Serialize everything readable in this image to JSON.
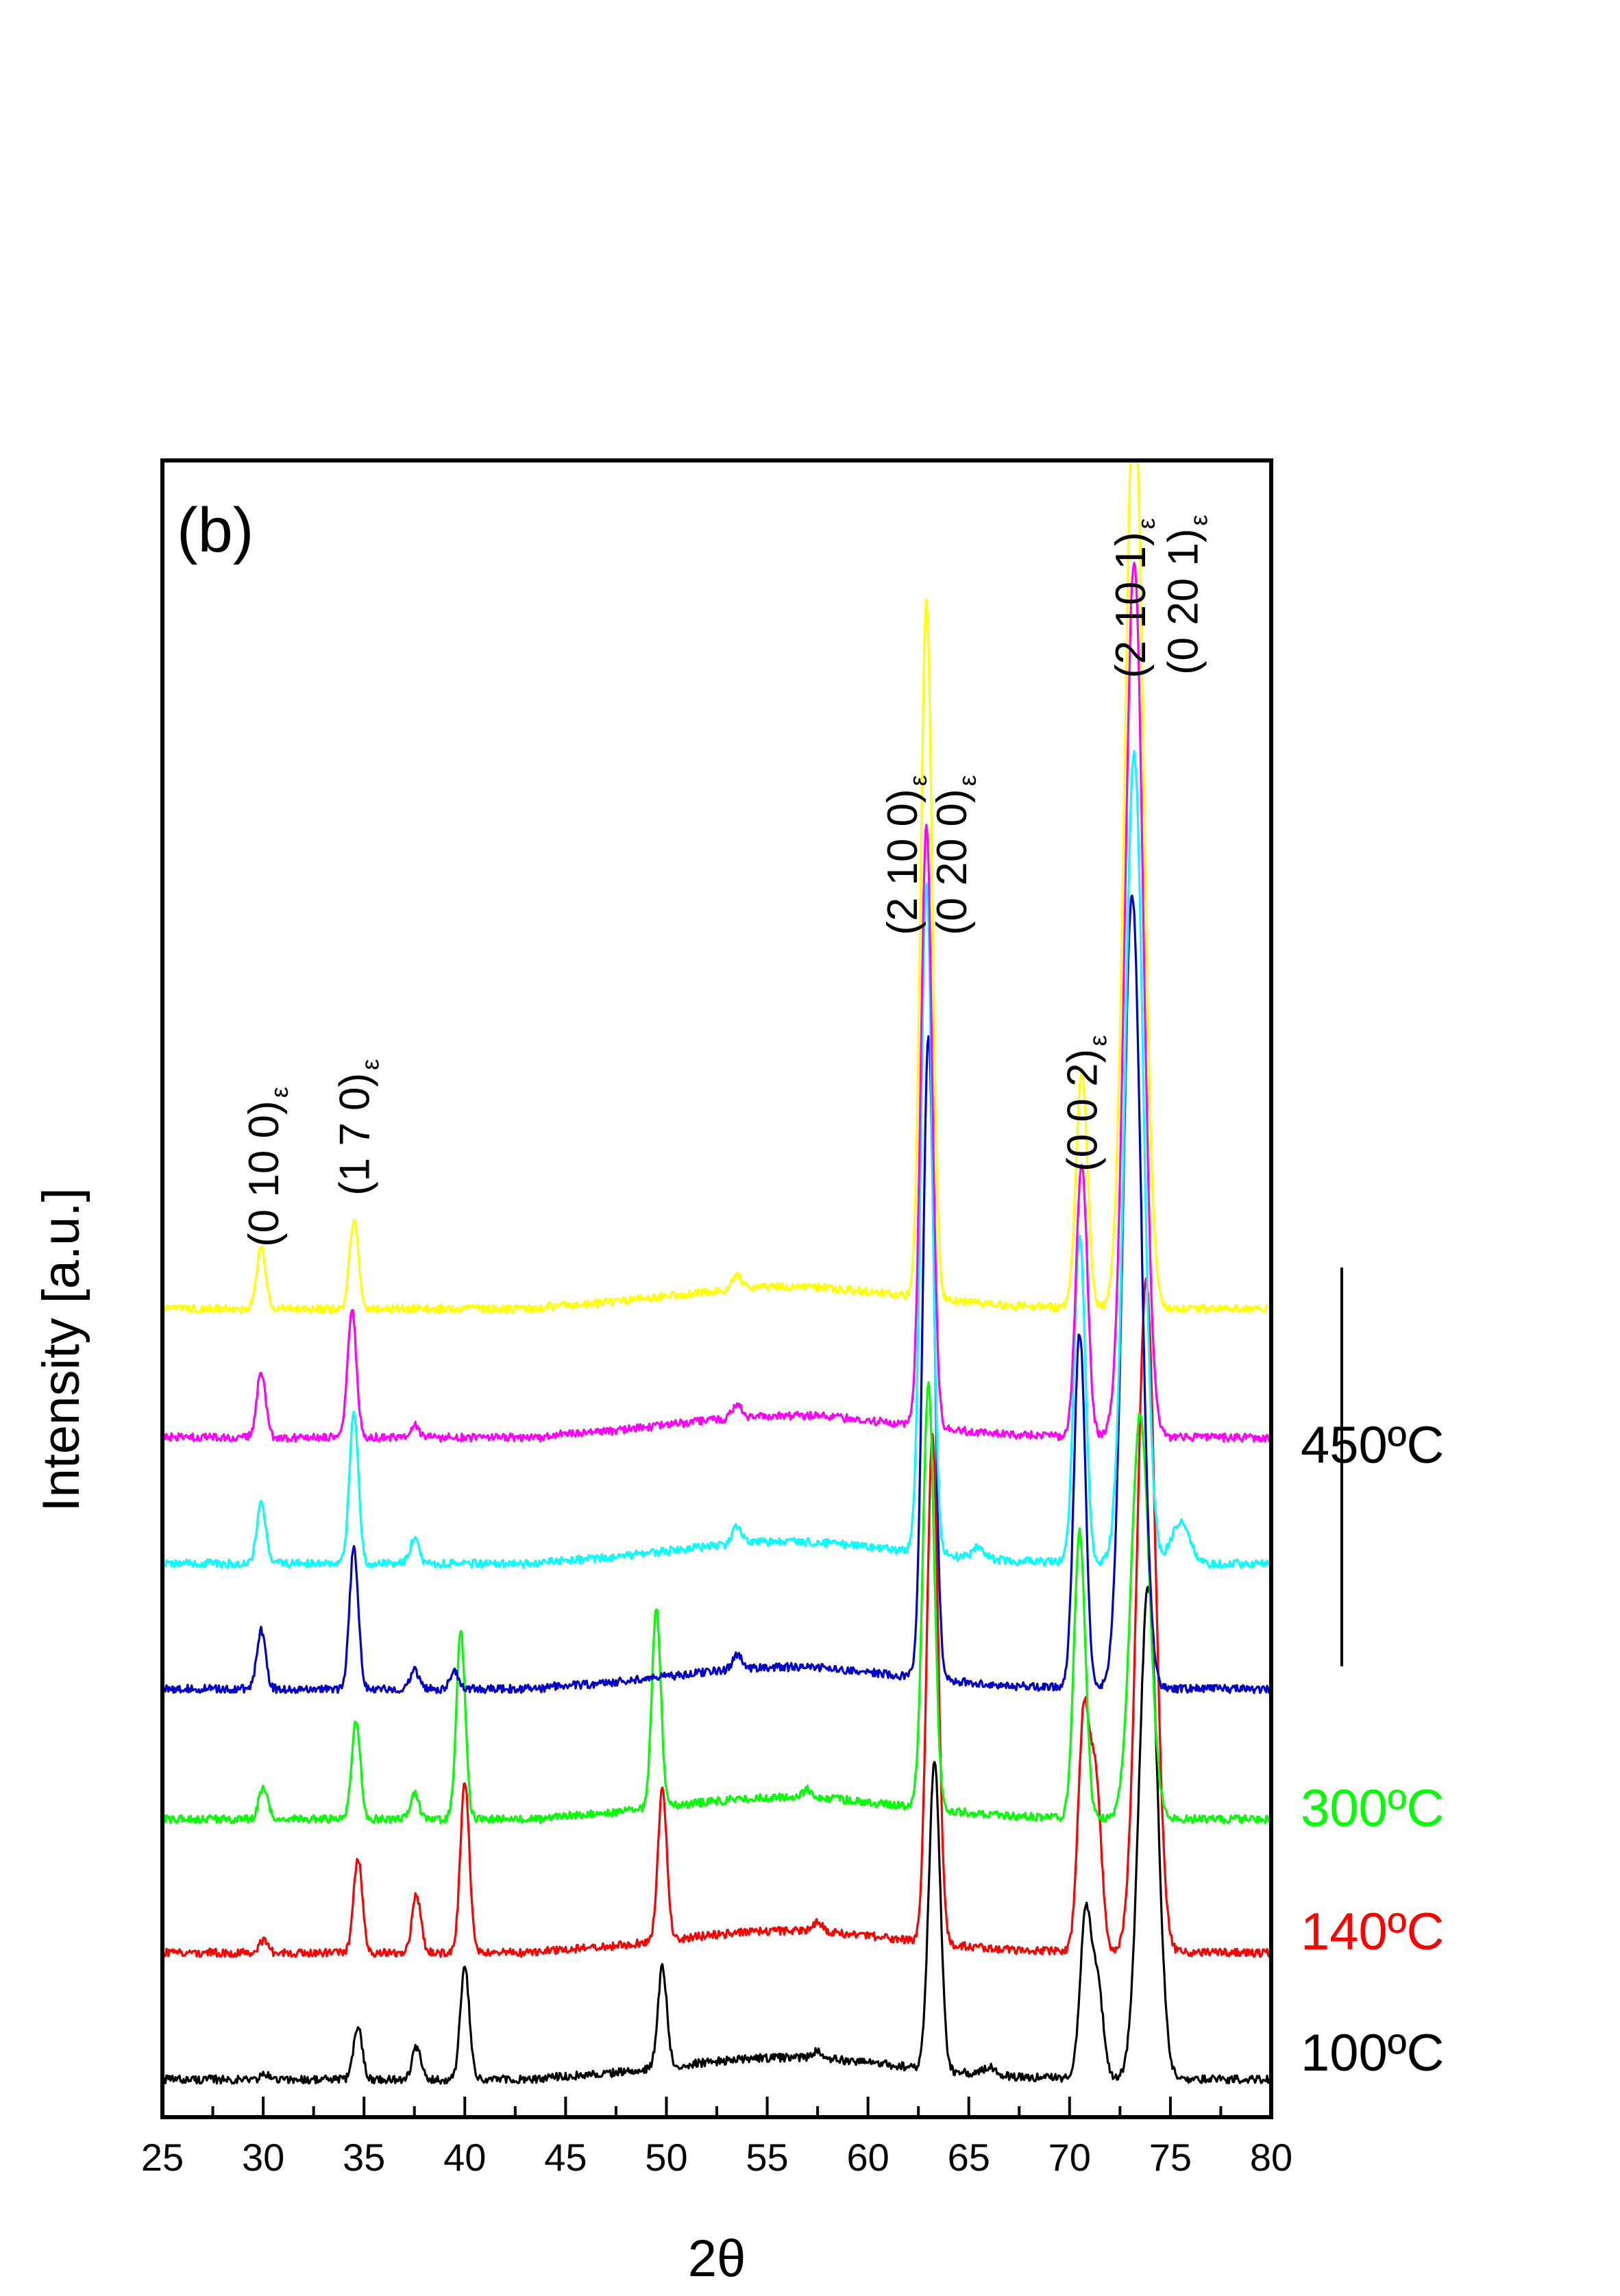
{
  "chart_data": {
    "type": "line",
    "panel_label": "(b)",
    "xlabel": "2θ",
    "ylabel": "Intensity [a.u.]",
    "xlim": [
      25,
      80
    ],
    "x_ticks": [
      25,
      30,
      35,
      40,
      45,
      50,
      55,
      60,
      65,
      70,
      75,
      80
    ],
    "grid": false,
    "series": [
      {
        "color": "#000000",
        "baseline": 300,
        "shift": 0.0,
        "peaks": [
          [
            30.1,
            35
          ],
          [
            34.7,
            380
          ],
          [
            37.6,
            230
          ],
          [
            40.0,
            820
          ],
          [
            49.8,
            730
          ],
          [
            57.5,
            60
          ],
          [
            63.3,
            2250
          ],
          [
            66.0,
            60
          ],
          [
            70.8,
            1200
          ],
          [
            71.4,
            650
          ],
          [
            73.9,
            3600
          ]
        ]
      },
      {
        "color": "#ff0000",
        "baseline": 480,
        "shift": 0.0,
        "peaks": [
          [
            30.0,
            90
          ],
          [
            34.7,
            700
          ],
          [
            37.6,
            420
          ],
          [
            40.0,
            1260
          ],
          [
            49.8,
            1100
          ],
          [
            57.5,
            70
          ],
          [
            63.2,
            3700
          ],
          [
            70.7,
            1700
          ],
          [
            71.3,
            1200
          ],
          [
            73.8,
            4900
          ]
        ]
      },
      {
        "color": "#00ff00",
        "baseline": 440,
        "shift": 0.0,
        "peaks": [
          [
            30.0,
            230
          ],
          [
            34.6,
            700
          ],
          [
            37.5,
            190
          ],
          [
            39.8,
            1370
          ],
          [
            49.5,
            1450
          ],
          [
            57.0,
            60
          ],
          [
            63.0,
            3100
          ],
          [
            70.5,
            2100
          ],
          [
            73.5,
            2950
          ]
        ]
      },
      {
        "color": "#0000cc",
        "baseline": 500,
        "shift": 0.0,
        "peaks": [
          [
            29.9,
            430
          ],
          [
            34.5,
            1030
          ],
          [
            37.5,
            140
          ],
          [
            39.5,
            120
          ],
          [
            53.5,
            110
          ],
          [
            63.0,
            4700
          ],
          [
            70.5,
            2600
          ],
          [
            73.1,
            5800
          ]
        ]
      },
      {
        "color": "#00ffff",
        "baseline": 500,
        "shift": 0.0,
        "peaks": [
          [
            29.9,
            450
          ],
          [
            34.5,
            1100
          ],
          [
            37.5,
            180
          ],
          [
            53.5,
            120
          ],
          [
            62.9,
            4900
          ],
          [
            65.5,
            80
          ],
          [
            70.5,
            2400
          ],
          [
            73.2,
            5900
          ],
          [
            75.5,
            300
          ]
        ]
      },
      {
        "color": "#ff00ff",
        "baseline": 480,
        "shift": 0.0,
        "peaks": [
          [
            29.9,
            480
          ],
          [
            34.4,
            930
          ],
          [
            37.5,
            100
          ],
          [
            53.5,
            100
          ],
          [
            62.9,
            4400
          ],
          [
            70.6,
            2000
          ],
          [
            73.2,
            6400
          ]
        ]
      },
      {
        "color": "#ffff00",
        "baseline": 480,
        "shift": 0.0,
        "peaks": [
          [
            29.9,
            460
          ],
          [
            34.5,
            650
          ],
          [
            53.5,
            100
          ],
          [
            62.9,
            5100
          ],
          [
            70.6,
            1720
          ],
          [
            73.2,
            6800
          ]
        ]
      }
    ],
    "temperature_labels": [
      {
        "text": "100ºC",
        "color": "#000000"
      },
      {
        "text": "140ºC",
        "color": "#ff0000"
      },
      {
        "text": "300ºC",
        "color": "#00ff00"
      },
      {
        "text": "450ºC",
        "color": "#000000"
      }
    ],
    "peak_labels": [
      {
        "lines": [
          "(0 10 0)"
        ],
        "sub": "ε",
        "x": 30.0
      },
      {
        "lines": [
          "(1 7 0)"
        ],
        "sub": "ε",
        "x": 34.5
      },
      {
        "lines": [
          "(2 10 0)",
          "(0 20 0)"
        ],
        "sub": "ε",
        "x": 62.9
      },
      {
        "lines": [
          "(0 0 2)"
        ],
        "sub": "ε",
        "x": 70.6
      },
      {
        "lines": [
          "(2 10 1)"
        ],
        "sub": "ε",
        "x": 73.0
      },
      {
        "lines": [
          "(0 20 1)"
        ],
        "sub": "ε",
        "x": 75.6
      }
    ]
  }
}
